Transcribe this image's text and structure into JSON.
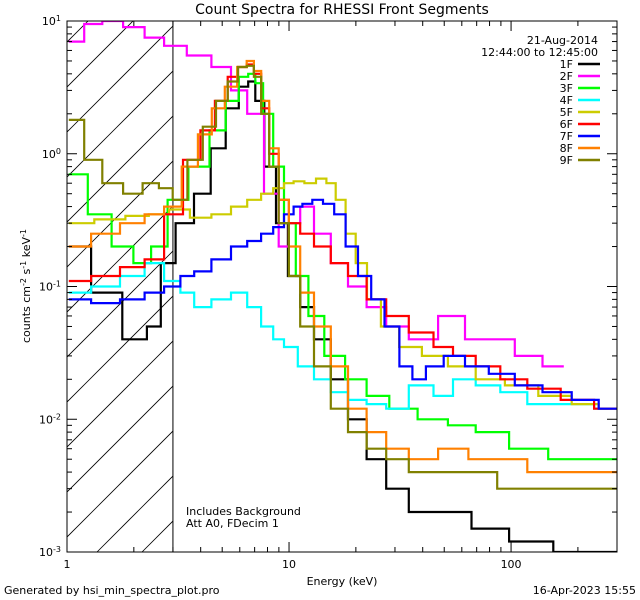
{
  "chart_data": {
    "type": "line",
    "title": "Count Spectra for RHESSI Front Segments",
    "xlabel": "Energy (keV)",
    "ylabel_main": "counts cm",
    "ylabel_exp1": "-2",
    "ylabel_mid": " s",
    "ylabel_exp2": "-1",
    "ylabel_mid2": " keV",
    "ylabel_exp3": "-1",
    "xscale": "log",
    "yscale": "log",
    "xlim": [
      1,
      300
    ],
    "ylim": [
      0.001,
      10
    ],
    "x_ticks": [
      {
        "value": 1,
        "label": "1"
      },
      {
        "value": 10,
        "label": "10"
      },
      {
        "value": 100,
        "label": "100"
      }
    ],
    "y_ticks": [
      {
        "value": 0.001,
        "base": "10",
        "exp": "-3"
      },
      {
        "value": 0.01,
        "base": "10",
        "exp": "-2"
      },
      {
        "value": 0.1,
        "base": "10",
        "exp": "-1"
      },
      {
        "value": 1,
        "base": "10",
        "exp": "0"
      },
      {
        "value": 10,
        "base": "10",
        "exp": "1"
      }
    ],
    "attenuator_threshold_keV": 3,
    "legend": {
      "placement": "top-right",
      "date": "21-Aug-2014",
      "time_range": "12:44:00 to 12:45:00"
    },
    "annotations": [
      "Includes Background",
      "Att A0, FDecim 1"
    ],
    "series": [
      {
        "name": "1F",
        "color": "#000000",
        "points": [
          [
            1.1,
            0.2
          ],
          [
            1.5,
            0.09
          ],
          [
            2.1,
            0.04
          ],
          [
            2.5,
            0.05
          ],
          [
            2.8,
            0.15
          ],
          [
            3.4,
            0.3
          ],
          [
            4.1,
            0.5
          ],
          [
            4.8,
            1.1
          ],
          [
            5.6,
            2.2
          ],
          [
            6.3,
            3.2
          ],
          [
            6.8,
            3.5
          ],
          [
            7.3,
            2.5
          ],
          [
            8.2,
            0.8
          ],
          [
            9.3,
            0.3
          ],
          [
            10.5,
            0.12
          ],
          [
            12,
            0.07
          ],
          [
            14,
            0.04
          ],
          [
            17,
            0.02
          ],
          [
            20,
            0.01
          ],
          [
            25,
            0.005
          ],
          [
            30,
            0.003
          ],
          [
            40,
            0.002
          ],
          [
            55,
            0.002
          ],
          [
            80,
            0.0015
          ],
          [
            120,
            0.0012
          ],
          [
            200,
            0.001
          ],
          [
            280,
            0.001
          ]
        ]
      },
      {
        "name": "2F",
        "color": "#ff00ff",
        "points": [
          [
            1.1,
            7
          ],
          [
            1.3,
            9.5
          ],
          [
            1.6,
            10
          ],
          [
            2,
            9
          ],
          [
            2.5,
            7.5
          ],
          [
            3,
            6.5
          ],
          [
            4,
            5.5
          ],
          [
            5,
            4.5
          ],
          [
            6,
            3
          ],
          [
            7,
            2
          ],
          [
            8.5,
            0.5
          ],
          [
            9.5,
            0.2
          ],
          [
            10.5,
            0.3
          ],
          [
            12,
            0.4
          ],
          [
            14,
            0.25
          ],
          [
            17,
            0.15
          ],
          [
            20,
            0.1
          ],
          [
            25,
            0.07
          ],
          [
            30,
            0.05
          ],
          [
            40,
            0.04
          ],
          [
            55,
            0.06
          ],
          [
            70,
            0.04
          ],
          [
            90,
            0.04
          ],
          [
            120,
            0.03
          ],
          [
            160,
            0.025
          ]
        ]
      },
      {
        "name": "3F",
        "color": "#00ff00",
        "points": [
          [
            1.1,
            0.7
          ],
          [
            1.4,
            0.35
          ],
          [
            1.8,
            0.2
          ],
          [
            2.2,
            0.15
          ],
          [
            2.6,
            0.2
          ],
          [
            3.1,
            0.45
          ],
          [
            4,
            0.8
          ],
          [
            4.8,
            1.5
          ],
          [
            5.6,
            2.5
          ],
          [
            6.3,
            3.8
          ],
          [
            6.8,
            4
          ],
          [
            7.3,
            3.4
          ],
          [
            8,
            2
          ],
          [
            9,
            0.8
          ],
          [
            10,
            0.3
          ],
          [
            11.5,
            0.12
          ],
          [
            13,
            0.06
          ],
          [
            16,
            0.03
          ],
          [
            20,
            0.02
          ],
          [
            25,
            0.015
          ],
          [
            32,
            0.012
          ],
          [
            45,
            0.01
          ],
          [
            60,
            0.009
          ],
          [
            80,
            0.008
          ],
          [
            120,
            0.006
          ],
          [
            180,
            0.005
          ],
          [
            280,
            0.005
          ]
        ]
      },
      {
        "name": "4F",
        "color": "#00ffff",
        "points": [
          [
            1.1,
            0.09
          ],
          [
            1.5,
            0.1
          ],
          [
            2,
            0.12
          ],
          [
            2.5,
            0.15
          ],
          [
            3,
            0.11
          ],
          [
            3.5,
            0.09
          ],
          [
            4,
            0.07
          ],
          [
            5,
            0.08
          ],
          [
            6,
            0.09
          ],
          [
            7,
            0.07
          ],
          [
            8,
            0.05
          ],
          [
            9,
            0.04
          ],
          [
            10,
            0.035
          ],
          [
            12,
            0.025
          ],
          [
            14,
            0.02
          ],
          [
            17,
            0.016
          ],
          [
            20,
            0.014
          ],
          [
            25,
            0.013
          ],
          [
            30,
            0.012
          ],
          [
            40,
            0.018
          ],
          [
            50,
            0.015
          ],
          [
            60,
            0.02
          ],
          [
            80,
            0.018
          ],
          [
            100,
            0.016
          ],
          [
            140,
            0.013
          ],
          [
            200,
            0.013
          ],
          [
            280,
            0.012
          ]
        ]
      },
      {
        "name": "5F",
        "color": "#cccc00",
        "points": [
          [
            1.1,
            0.3
          ],
          [
            1.6,
            0.32
          ],
          [
            2.1,
            0.34
          ],
          [
            2.6,
            0.35
          ],
          [
            3.2,
            0.38
          ],
          [
            4,
            0.33
          ],
          [
            5,
            0.35
          ],
          [
            6,
            0.4
          ],
          [
            7,
            0.45
          ],
          [
            8,
            0.5
          ],
          [
            9,
            0.55
          ],
          [
            10,
            0.6
          ],
          [
            11,
            0.62
          ],
          [
            12.5,
            0.6
          ],
          [
            14,
            0.65
          ],
          [
            15.5,
            0.6
          ],
          [
            17,
            0.45
          ],
          [
            19,
            0.25
          ],
          [
            21,
            0.15
          ],
          [
            24,
            0.08
          ],
          [
            28,
            0.05
          ],
          [
            35,
            0.035
          ],
          [
            45,
            0.03
          ],
          [
            60,
            0.025
          ],
          [
            80,
            0.02
          ],
          [
            110,
            0.018
          ],
          [
            160,
            0.015
          ],
          [
            220,
            0.013
          ],
          [
            280,
            0.012
          ]
        ]
      },
      {
        "name": "6F",
        "color": "#ff0000",
        "points": [
          [
            1.1,
            0.11
          ],
          [
            1.5,
            0.12
          ],
          [
            2,
            0.14
          ],
          [
            2.5,
            0.16
          ],
          [
            3,
            0.35
          ],
          [
            3.7,
            0.9
          ],
          [
            4.3,
            1.5
          ],
          [
            5,
            2.5
          ],
          [
            5.6,
            3.8
          ],
          [
            6.2,
            4.5
          ],
          [
            6.7,
            4.7
          ],
          [
            7.2,
            4
          ],
          [
            7.8,
            2.2
          ],
          [
            8.5,
            1
          ],
          [
            9.5,
            0.45
          ],
          [
            10.5,
            0.3
          ],
          [
            12,
            0.25
          ],
          [
            14,
            0.2
          ],
          [
            17,
            0.15
          ],
          [
            20,
            0.12
          ],
          [
            25,
            0.08
          ],
          [
            30,
            0.06
          ],
          [
            40,
            0.045
          ],
          [
            50,
            0.035
          ],
          [
            60,
            0.03
          ],
          [
            80,
            0.025
          ],
          [
            100,
            0.02
          ],
          [
            140,
            0.017
          ],
          [
            200,
            0.014
          ],
          [
            280,
            0.012
          ]
        ]
      },
      {
        "name": "7F",
        "color": "#0000ff",
        "points": [
          [
            1.1,
            0.08
          ],
          [
            1.5,
            0.075
          ],
          [
            2,
            0.08
          ],
          [
            2.5,
            0.09
          ],
          [
            3,
            0.1
          ],
          [
            3.5,
            0.12
          ],
          [
            4,
            0.13
          ],
          [
            5,
            0.16
          ],
          [
            6,
            0.2
          ],
          [
            7,
            0.22
          ],
          [
            8,
            0.25
          ],
          [
            9,
            0.28
          ],
          [
            10,
            0.35
          ],
          [
            11,
            0.4
          ],
          [
            12,
            0.42
          ],
          [
            13.5,
            0.45
          ],
          [
            15,
            0.42
          ],
          [
            17,
            0.35
          ],
          [
            19,
            0.2
          ],
          [
            22,
            0.12
          ],
          [
            25,
            0.08
          ],
          [
            29,
            0.05
          ],
          [
            34,
            0.025
          ],
          [
            38,
            0.02
          ],
          [
            45,
            0.025
          ],
          [
            55,
            0.03
          ],
          [
            70,
            0.025
          ],
          [
            90,
            0.022
          ],
          [
            120,
            0.018
          ],
          [
            160,
            0.016
          ],
          [
            220,
            0.014
          ],
          [
            280,
            0.012
          ]
        ]
      },
      {
        "name": "8F",
        "color": "#ff8000",
        "points": [
          [
            1.1,
            0.2
          ],
          [
            1.5,
            0.25
          ],
          [
            2,
            0.3
          ],
          [
            2.5,
            0.35
          ],
          [
            3,
            0.4
          ],
          [
            3.6,
            0.8
          ],
          [
            4.2,
            1.4
          ],
          [
            4.8,
            2.2
          ],
          [
            5.5,
            3.2
          ],
          [
            6.2,
            4.5
          ],
          [
            6.7,
            5
          ],
          [
            7.2,
            4.2
          ],
          [
            7.8,
            2.5
          ],
          [
            8.5,
            1.1
          ],
          [
            9.5,
            0.45
          ],
          [
            10.5,
            0.2
          ],
          [
            12,
            0.09
          ],
          [
            14,
            0.05
          ],
          [
            17,
            0.025
          ],
          [
            20,
            0.012
          ],
          [
            25,
            0.008
          ],
          [
            30,
            0.006
          ],
          [
            40,
            0.005
          ],
          [
            55,
            0.006
          ],
          [
            75,
            0.005
          ],
          [
            100,
            0.005
          ],
          [
            140,
            0.004
          ],
          [
            200,
            0.004
          ],
          [
            280,
            0.004
          ]
        ]
      },
      {
        "name": "9F",
        "color": "#808000",
        "points": [
          [
            1.1,
            1.8
          ],
          [
            1.3,
            0.9
          ],
          [
            1.6,
            0.6
          ],
          [
            2,
            0.5
          ],
          [
            2.4,
            0.6
          ],
          [
            2.8,
            0.55
          ],
          [
            3.2,
            0.45
          ],
          [
            3.8,
            0.9
          ],
          [
            4.4,
            1.6
          ],
          [
            5,
            2.5
          ],
          [
            5.6,
            3.5
          ],
          [
            6.2,
            4.5
          ],
          [
            6.7,
            4.6
          ],
          [
            7.2,
            3.8
          ],
          [
            7.8,
            2
          ],
          [
            8.5,
            0.8
          ],
          [
            9.5,
            0.3
          ],
          [
            10.5,
            0.12
          ],
          [
            12,
            0.05
          ],
          [
            14,
            0.025
          ],
          [
            17,
            0.012
          ],
          [
            20,
            0.008
          ],
          [
            25,
            0.006
          ],
          [
            30,
            0.005
          ],
          [
            40,
            0.004
          ],
          [
            55,
            0.004
          ],
          [
            75,
            0.004
          ],
          [
            100,
            0.003
          ],
          [
            140,
            0.003
          ],
          [
            200,
            0.003
          ],
          [
            280,
            0.003
          ]
        ]
      }
    ]
  },
  "footer": {
    "left": "Generated by hsi_min_spectra_plot.pro",
    "right": "16-Apr-2023 15:55"
  }
}
